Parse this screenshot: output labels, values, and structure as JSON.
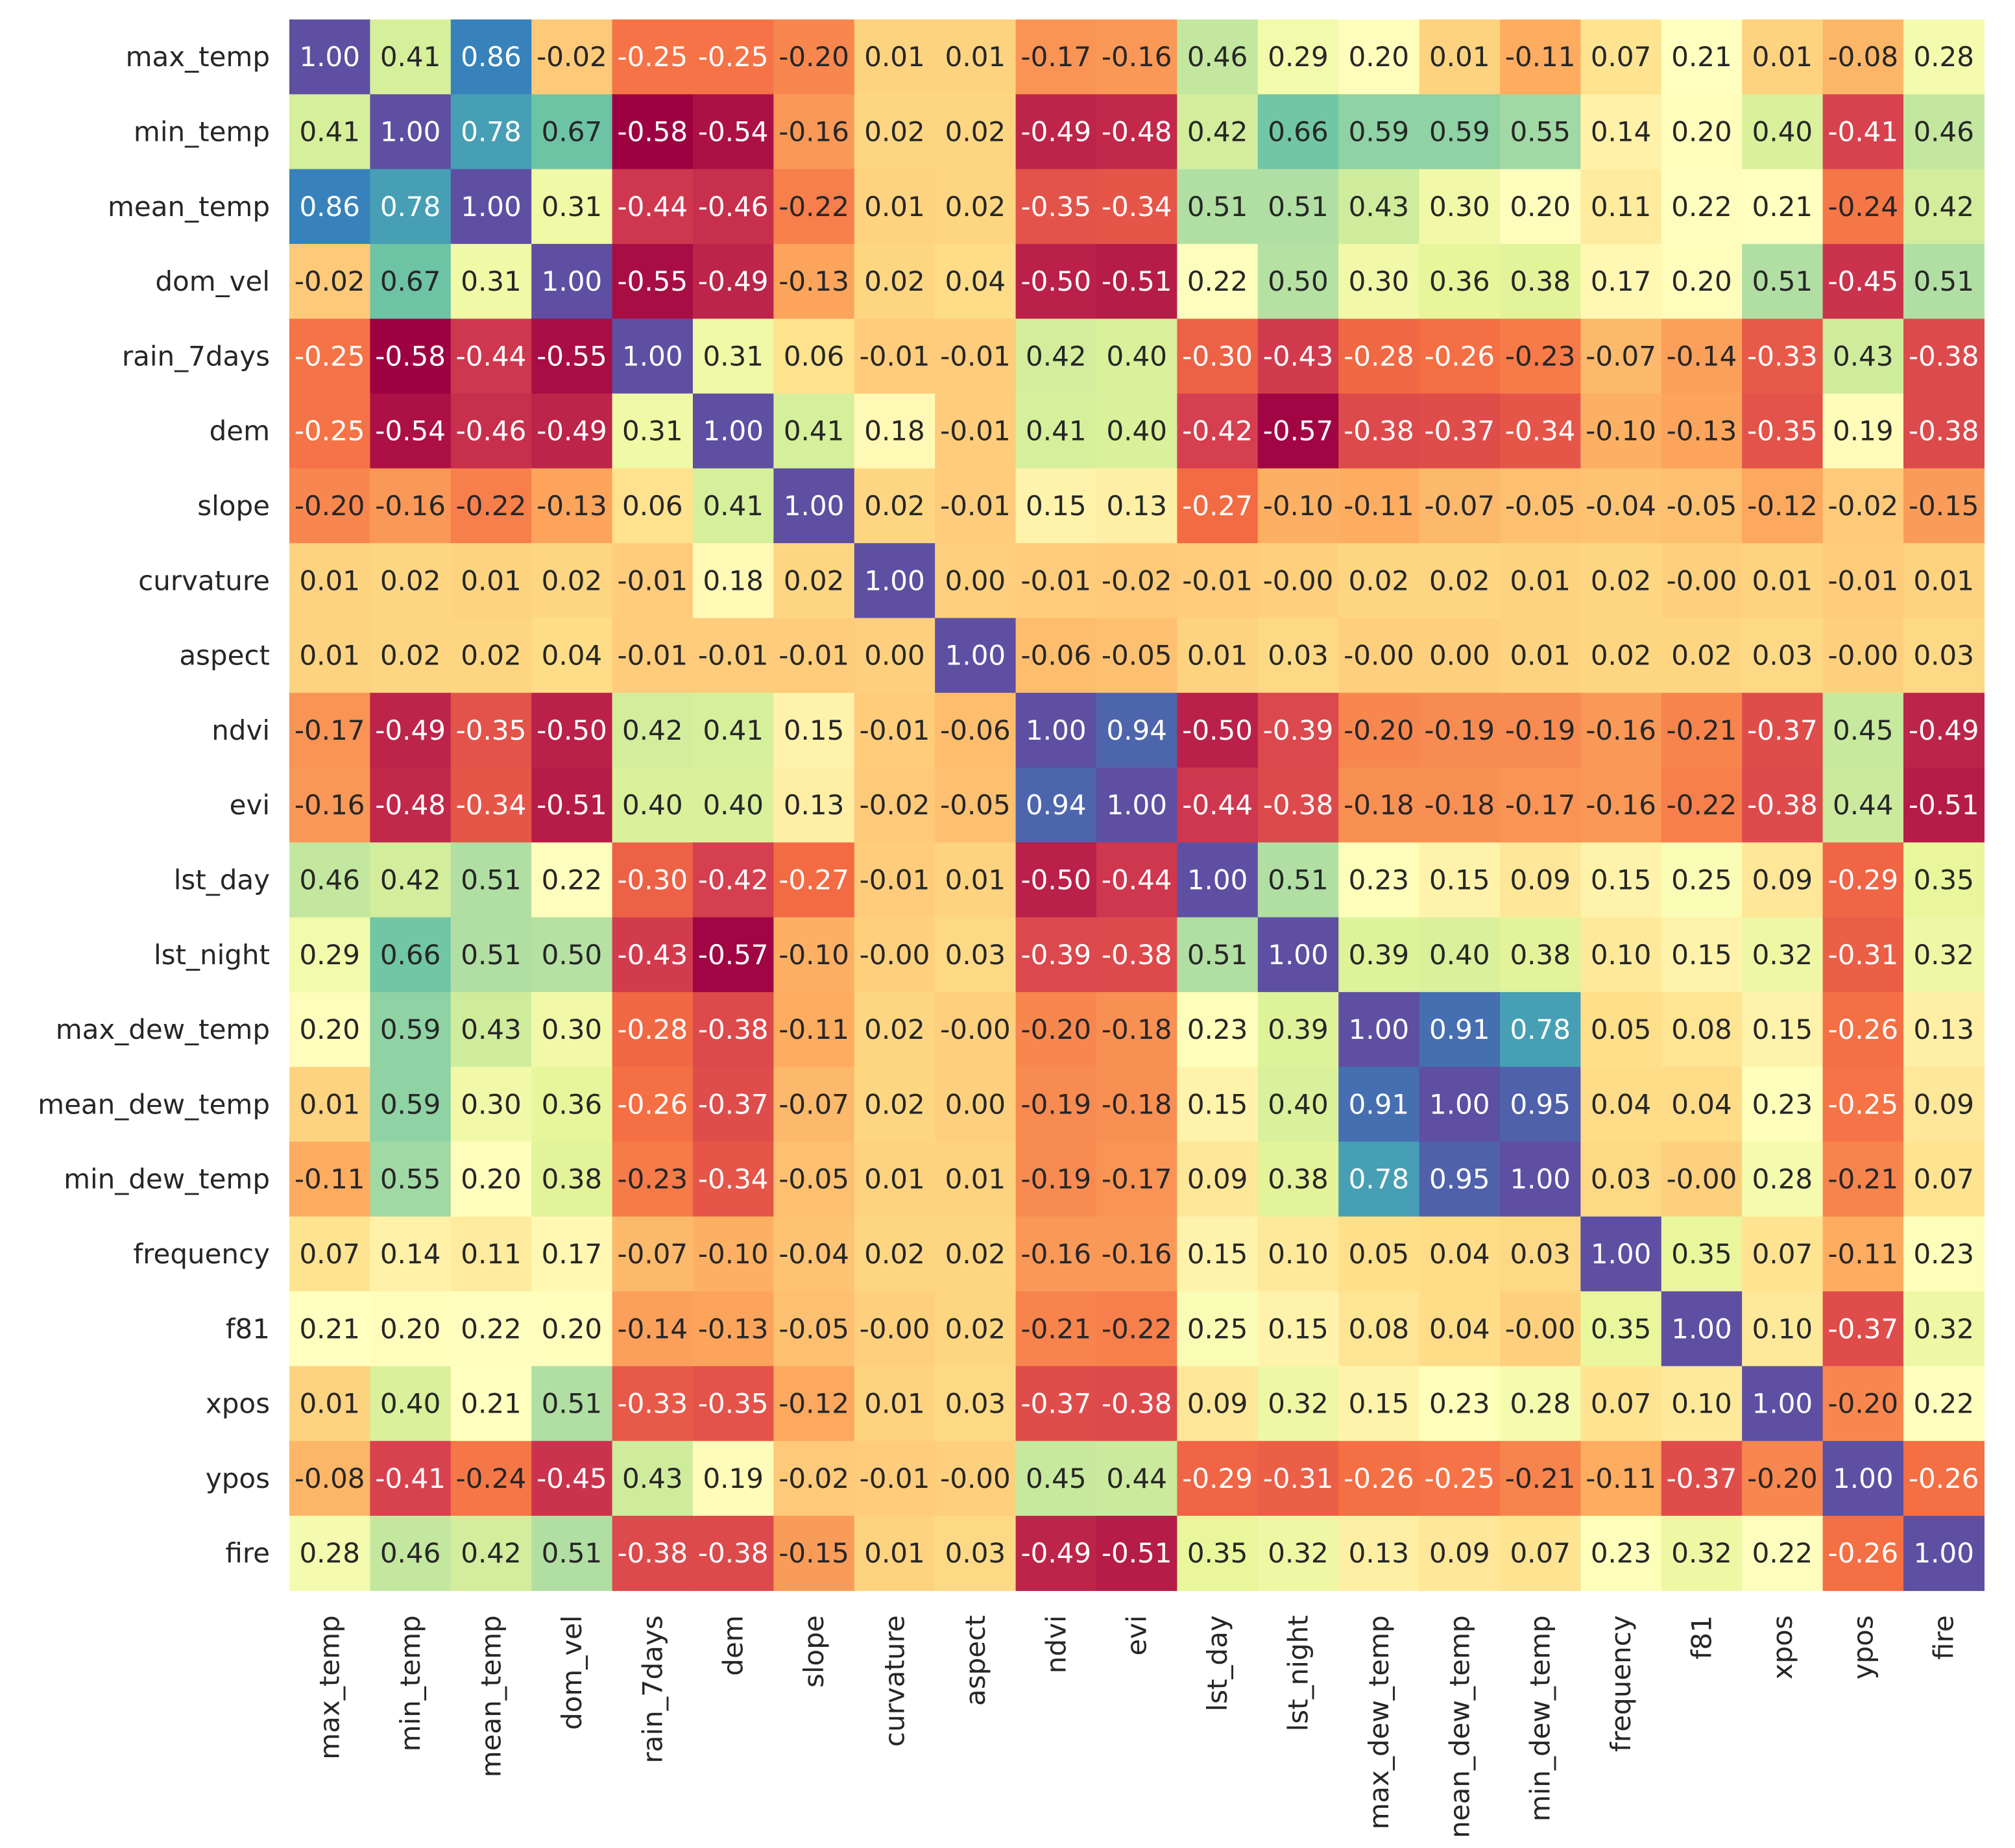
{
  "chart_data": {
    "type": "heatmap",
    "title": "",
    "xlabel": "",
    "ylabel": "",
    "colormap": "Spectral",
    "vmin": -0.58,
    "vmax": 1.0,
    "value_format": "2 decimals",
    "colorbar": false,
    "labels": [
      "max_temp",
      "min_temp",
      "mean_temp",
      "dom_vel",
      "rain_7days",
      "dem",
      "slope",
      "curvature",
      "aspect",
      "ndvi",
      "evi",
      "lst_day",
      "lst_night",
      "max_dew_temp",
      "mean_dew_temp",
      "min_dew_temp",
      "frequency",
      "f81",
      "xpos",
      "ypos",
      "fire"
    ],
    "col_labels": [
      "max_temp",
      "min_temp",
      "mean_temp",
      "dom_vel",
      "rain_7days",
      "dem",
      "slope",
      "curvature",
      "aspect",
      "ndvi",
      "evi",
      "lst_day",
      "lst_night",
      "max_dew_temp",
      "nean_dew_temp",
      "min_dew_temp",
      "frequency",
      "f81",
      "xpos",
      "ypos",
      "fire"
    ],
    "matrix": [
      [
        "1.00",
        "0.41",
        "0.86",
        "-0.02",
        "-0.25",
        "-0.25",
        "-0.20",
        "0.01",
        "0.01",
        "-0.17",
        "-0.16",
        "0.46",
        "0.29",
        "0.20",
        "0.01",
        "-0.11",
        "0.07",
        "0.21",
        "0.01",
        "-0.08",
        "0.28"
      ],
      [
        "0.41",
        "1.00",
        "0.78",
        "0.67",
        "-0.58",
        "-0.54",
        "-0.16",
        "0.02",
        "0.02",
        "-0.49",
        "-0.48",
        "0.42",
        "0.66",
        "0.59",
        "0.59",
        "0.55",
        "0.14",
        "0.20",
        "0.40",
        "-0.41",
        "0.46"
      ],
      [
        "0.86",
        "0.78",
        "1.00",
        "0.31",
        "-0.44",
        "-0.46",
        "-0.22",
        "0.01",
        "0.02",
        "-0.35",
        "-0.34",
        "0.51",
        "0.51",
        "0.43",
        "0.30",
        "0.20",
        "0.11",
        "0.22",
        "0.21",
        "-0.24",
        "0.42"
      ],
      [
        "-0.02",
        "0.67",
        "0.31",
        "1.00",
        "-0.55",
        "-0.49",
        "-0.13",
        "0.02",
        "0.04",
        "-0.50",
        "-0.51",
        "0.22",
        "0.50",
        "0.30",
        "0.36",
        "0.38",
        "0.17",
        "0.20",
        "0.51",
        "-0.45",
        "0.51"
      ],
      [
        "-0.25",
        "-0.58",
        "-0.44",
        "-0.55",
        "1.00",
        "0.31",
        "0.06",
        "-0.01",
        "-0.01",
        "0.42",
        "0.40",
        "-0.30",
        "-0.43",
        "-0.28",
        "-0.26",
        "-0.23",
        "-0.07",
        "-0.14",
        "-0.33",
        "0.43",
        "-0.38"
      ],
      [
        "-0.25",
        "-0.54",
        "-0.46",
        "-0.49",
        "0.31",
        "1.00",
        "0.41",
        "0.18",
        "-0.01",
        "0.41",
        "0.40",
        "-0.42",
        "-0.57",
        "-0.38",
        "-0.37",
        "-0.34",
        "-0.10",
        "-0.13",
        "-0.35",
        "0.19",
        "-0.38"
      ],
      [
        "-0.20",
        "-0.16",
        "-0.22",
        "-0.13",
        "0.06",
        "0.41",
        "1.00",
        "0.02",
        "-0.01",
        "0.15",
        "0.13",
        "-0.27",
        "-0.10",
        "-0.11",
        "-0.07",
        "-0.05",
        "-0.04",
        "-0.05",
        "-0.12",
        "-0.02",
        "-0.15"
      ],
      [
        "0.01",
        "0.02",
        "0.01",
        "0.02",
        "-0.01",
        "0.18",
        "0.02",
        "1.00",
        "0.00",
        "-0.01",
        "-0.02",
        "-0.01",
        "-0.00",
        "0.02",
        "0.02",
        "0.01",
        "0.02",
        "-0.00",
        "0.01",
        "-0.01",
        "0.01"
      ],
      [
        "0.01",
        "0.02",
        "0.02",
        "0.04",
        "-0.01",
        "-0.01",
        "-0.01",
        "0.00",
        "1.00",
        "-0.06",
        "-0.05",
        "0.01",
        "0.03",
        "-0.00",
        "0.00",
        "0.01",
        "0.02",
        "0.02",
        "0.03",
        "-0.00",
        "0.03"
      ],
      [
        "-0.17",
        "-0.49",
        "-0.35",
        "-0.50",
        "0.42",
        "0.41",
        "0.15",
        "-0.01",
        "-0.06",
        "1.00",
        "0.94",
        "-0.50",
        "-0.39",
        "-0.20",
        "-0.19",
        "-0.19",
        "-0.16",
        "-0.21",
        "-0.37",
        "0.45",
        "-0.49"
      ],
      [
        "-0.16",
        "-0.48",
        "-0.34",
        "-0.51",
        "0.40",
        "0.40",
        "0.13",
        "-0.02",
        "-0.05",
        "0.94",
        "1.00",
        "-0.44",
        "-0.38",
        "-0.18",
        "-0.18",
        "-0.17",
        "-0.16",
        "-0.22",
        "-0.38",
        "0.44",
        "-0.51"
      ],
      [
        "0.46",
        "0.42",
        "0.51",
        "0.22",
        "-0.30",
        "-0.42",
        "-0.27",
        "-0.01",
        "0.01",
        "-0.50",
        "-0.44",
        "1.00",
        "0.51",
        "0.23",
        "0.15",
        "0.09",
        "0.15",
        "0.25",
        "0.09",
        "-0.29",
        "0.35"
      ],
      [
        "0.29",
        "0.66",
        "0.51",
        "0.50",
        "-0.43",
        "-0.57",
        "-0.10",
        "-0.00",
        "0.03",
        "-0.39",
        "-0.38",
        "0.51",
        "1.00",
        "0.39",
        "0.40",
        "0.38",
        "0.10",
        "0.15",
        "0.32",
        "-0.31",
        "0.32"
      ],
      [
        "0.20",
        "0.59",
        "0.43",
        "0.30",
        "-0.28",
        "-0.38",
        "-0.11",
        "0.02",
        "-0.00",
        "-0.20",
        "-0.18",
        "0.23",
        "0.39",
        "1.00",
        "0.91",
        "0.78",
        "0.05",
        "0.08",
        "0.15",
        "-0.26",
        "0.13"
      ],
      [
        "0.01",
        "0.59",
        "0.30",
        "0.36",
        "-0.26",
        "-0.37",
        "-0.07",
        "0.02",
        "0.00",
        "-0.19",
        "-0.18",
        "0.15",
        "0.40",
        "0.91",
        "1.00",
        "0.95",
        "0.04",
        "0.04",
        "0.23",
        "-0.25",
        "0.09"
      ],
      [
        "-0.11",
        "0.55",
        "0.20",
        "0.38",
        "-0.23",
        "-0.34",
        "-0.05",
        "0.01",
        "0.01",
        "-0.19",
        "-0.17",
        "0.09",
        "0.38",
        "0.78",
        "0.95",
        "1.00",
        "0.03",
        "-0.00",
        "0.28",
        "-0.21",
        "0.07"
      ],
      [
        "0.07",
        "0.14",
        "0.11",
        "0.17",
        "-0.07",
        "-0.10",
        "-0.04",
        "0.02",
        "0.02",
        "-0.16",
        "-0.16",
        "0.15",
        "0.10",
        "0.05",
        "0.04",
        "0.03",
        "1.00",
        "0.35",
        "0.07",
        "-0.11",
        "0.23"
      ],
      [
        "0.21",
        "0.20",
        "0.22",
        "0.20",
        "-0.14",
        "-0.13",
        "-0.05",
        "-0.00",
        "0.02",
        "-0.21",
        "-0.22",
        "0.25",
        "0.15",
        "0.08",
        "0.04",
        "-0.00",
        "0.35",
        "1.00",
        "0.10",
        "-0.37",
        "0.32"
      ],
      [
        "0.01",
        "0.40",
        "0.21",
        "0.51",
        "-0.33",
        "-0.35",
        "-0.12",
        "0.01",
        "0.03",
        "-0.37",
        "-0.38",
        "0.09",
        "0.32",
        "0.15",
        "0.23",
        "0.28",
        "0.07",
        "0.10",
        "1.00",
        "-0.20",
        "0.22"
      ],
      [
        "-0.08",
        "-0.41",
        "-0.24",
        "-0.45",
        "0.43",
        "0.19",
        "-0.02",
        "-0.01",
        "-0.00",
        "0.45",
        "0.44",
        "-0.29",
        "-0.31",
        "-0.26",
        "-0.25",
        "-0.21",
        "-0.11",
        "-0.37",
        "-0.20",
        "1.00",
        "-0.26"
      ],
      [
        "0.28",
        "0.46",
        "0.42",
        "0.51",
        "-0.38",
        "-0.38",
        "-0.15",
        "0.01",
        "0.03",
        "-0.49",
        "-0.51",
        "0.35",
        "0.32",
        "0.13",
        "0.09",
        "0.07",
        "0.23",
        "0.32",
        "0.22",
        "-0.26",
        "1.00"
      ]
    ]
  }
}
